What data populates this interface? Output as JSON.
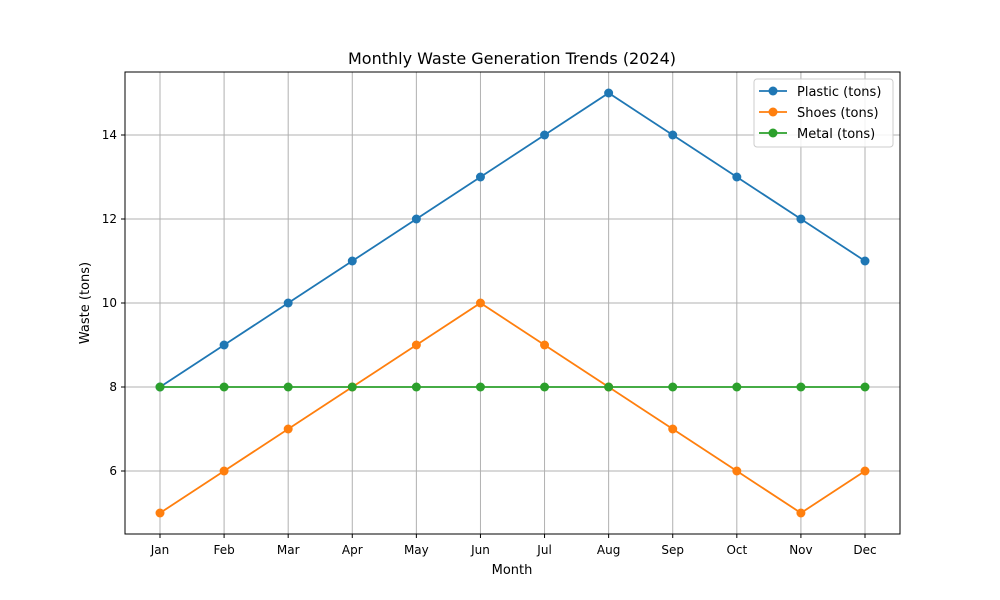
{
  "chart_data": {
    "type": "line",
    "title": "Monthly Waste Generation Trends (2024)",
    "xlabel": "Month",
    "ylabel": "Waste (tons)",
    "categories": [
      "Jan",
      "Feb",
      "Mar",
      "Apr",
      "May",
      "Jun",
      "Jul",
      "Aug",
      "Sep",
      "Oct",
      "Nov",
      "Dec"
    ],
    "ylim": [
      4.5,
      15.5
    ],
    "yticks": [
      6,
      8,
      10,
      12,
      14
    ],
    "grid": true,
    "legend_position": "top-right",
    "series": [
      {
        "name": "Plastic (tons)",
        "color": "#1f77b4",
        "values": [
          8,
          9,
          10,
          11,
          12,
          13,
          14,
          15,
          14,
          13,
          12,
          11
        ]
      },
      {
        "name": "Shoes (tons)",
        "color": "#ff7f0e",
        "values": [
          5,
          6,
          7,
          8,
          9,
          10,
          9,
          8,
          7,
          6,
          5,
          6
        ]
      },
      {
        "name": "Metal (tons)",
        "color": "#2ca02c",
        "values": [
          8,
          8,
          8,
          8,
          8,
          8,
          8,
          8,
          8,
          8,
          8,
          8
        ]
      }
    ]
  }
}
